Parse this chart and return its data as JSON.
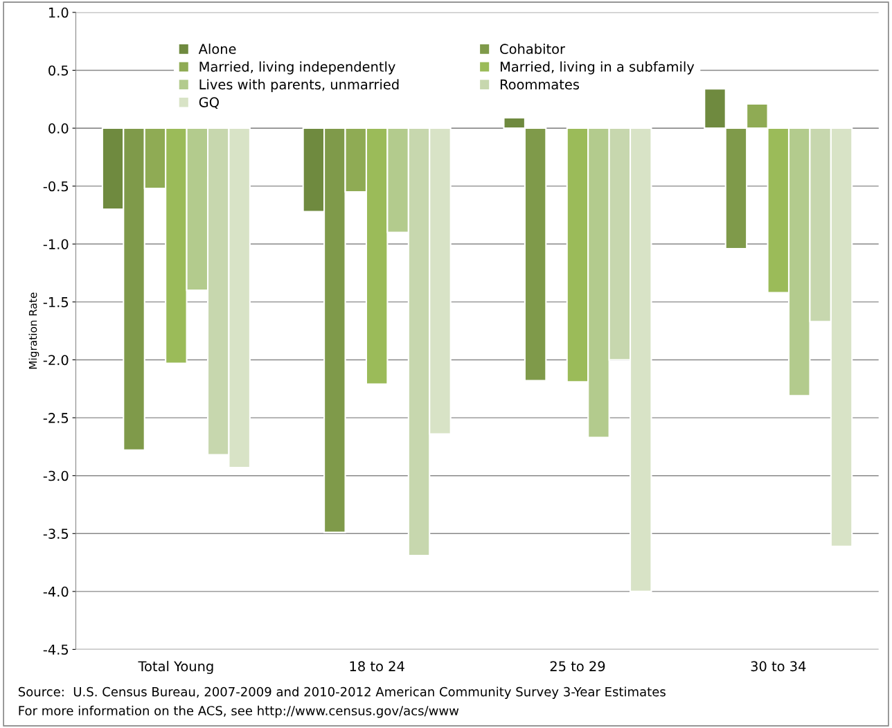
{
  "chart_data": {
    "type": "bar",
    "ylabel": "Migration Rate",
    "categories": [
      "Total Young",
      "18 to 24",
      "25 to 29",
      "30 to 34"
    ],
    "series": [
      {
        "name": "Alone",
        "color": "#6f8a3f",
        "values": [
          -0.7,
          -0.72,
          0.09,
          0.34
        ]
      },
      {
        "name": "Cohabitor",
        "color": "#7f9a4a",
        "values": [
          -2.78,
          -3.49,
          -2.18,
          -1.04
        ]
      },
      {
        "name": "Married, living independently",
        "color": "#8fab54",
        "values": [
          -0.52,
          -0.55,
          null,
          0.21
        ]
      },
      {
        "name": "Married, living in a subfamily",
        "color": "#9bbb59",
        "values": [
          -2.03,
          -2.21,
          -2.19,
          -1.42
        ]
      },
      {
        "name": "Lives with parents, unmarried",
        "color": "#b3cb8d",
        "values": [
          -1.4,
          -0.9,
          -2.67,
          -2.31
        ]
      },
      {
        "name": "Roommates",
        "color": "#c7d7ae",
        "values": [
          -2.82,
          -3.69,
          -2.0,
          -1.67
        ]
      },
      {
        "name": "GQ",
        "color": "#d8e3c6",
        "values": [
          -2.93,
          -2.64,
          -4.0,
          -3.61
        ]
      }
    ],
    "ylim": [
      -4.5,
      1.0
    ],
    "yticks": [
      {
        "value": -4.5,
        "label": "-4.5"
      },
      {
        "value": -4.0,
        "label": "-4.0"
      },
      {
        "value": -3.5,
        "label": "-3.5"
      },
      {
        "value": -3.0,
        "label": "-3.0"
      },
      {
        "value": -2.5,
        "label": "-2.5"
      },
      {
        "value": -2.0,
        "label": "-2.0"
      },
      {
        "value": -1.5,
        "label": "-1.5"
      },
      {
        "value": -1.0,
        "label": "-1.0"
      },
      {
        "value": -0.5,
        "label": "-0.5"
      },
      {
        "value": 0,
        "label": "0.0"
      },
      {
        "value": 0.5,
        "label": "0.5"
      },
      {
        "value": 1.0,
        "label": "1.0"
      }
    ],
    "grid": "y",
    "legend": "top",
    "annotations": [
      "Source:  U.S. Census Bureau, 2007-2009 and 2010-2012 American Community Survey 3-Year Estimates",
      "For more information on the ACS, see http://www.census.gov/acs/www"
    ]
  }
}
